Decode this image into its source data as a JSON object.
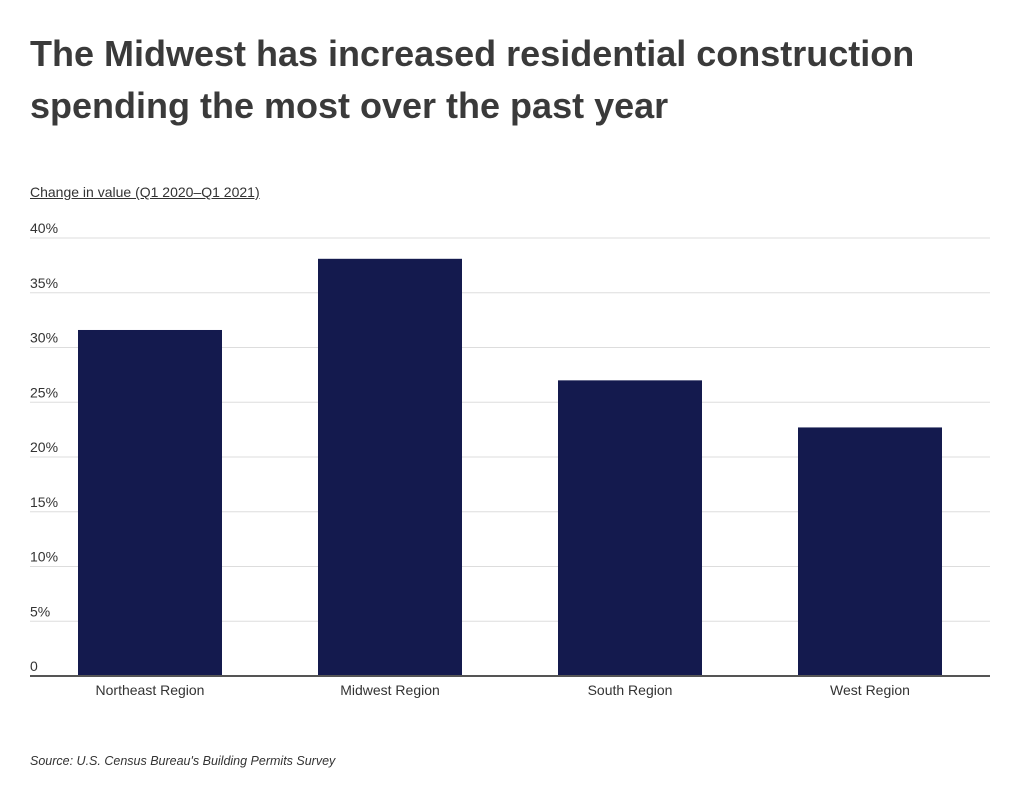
{
  "title": "The Midwest has increased residential construction spending the most over the past year",
  "source": "Source:  U.S. Census Bureau's Building Permits Survey",
  "colors": {
    "bar": "#141a4e",
    "grid": "#dddddd",
    "axis": "#555555"
  },
  "chart_data": {
    "type": "bar",
    "title": "The Midwest has increased residential construction spending the most over the past year",
    "ylabel": "Change in value (Q1 2020–Q1 2021)",
    "xlabel": "",
    "categories": [
      "Northeast Region",
      "Midwest Region",
      "South Region",
      "West Region"
    ],
    "values": [
      31.6,
      38.1,
      27.0,
      22.7
    ],
    "unit": "%",
    "ylim": [
      0,
      40
    ],
    "yticks": [
      0,
      5,
      10,
      15,
      20,
      25,
      30,
      35,
      40
    ],
    "ytick_labels": [
      "0",
      "5%",
      "10%",
      "15%",
      "20%",
      "25%",
      "30%",
      "35%",
      "40%"
    ],
    "grid": true,
    "legend": "none"
  }
}
